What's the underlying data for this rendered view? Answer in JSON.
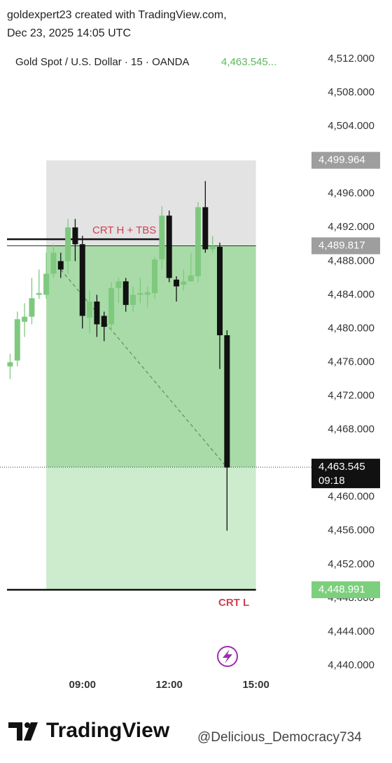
{
  "header": {
    "line1": "goldexpert23 created with TradingView.com,",
    "line2": "Dec 23, 2025 14:05 UTC"
  },
  "chart_data": {
    "type": "candlestick",
    "title": "Gold Spot / U.S. Dollar · 15 · OANDA",
    "last_price_label": "4,463.545...",
    "up_color": "#7fc97f",
    "down_color": "#111111",
    "x": [
      6.5,
      6.75,
      7.0,
      7.25,
      7.5,
      7.75,
      8.0,
      8.25,
      8.5,
      8.75,
      9.0,
      9.25,
      9.5,
      9.75,
      10.0,
      10.25,
      10.5,
      10.75,
      11.0,
      11.25,
      11.5,
      11.75,
      12.0,
      12.25,
      12.5,
      12.75,
      13.0,
      13.25,
      13.5,
      13.75,
      14.0
    ],
    "open": [
      4475.5,
      4476.2,
      4480.8,
      4481.4,
      4484.0,
      4484.0,
      4486.5,
      4488.0,
      4488.0,
      4492.0,
      4490.0,
      4481.3,
      4483.2,
      4481.5,
      4480.5,
      4484.8,
      4485.6,
      4482.8,
      4484.0,
      4484.0,
      4484.2,
      4488.2,
      4493.4,
      4485.8,
      4485.2,
      4485.6,
      4486.2,
      4494.4,
      4489.4,
      4489.7,
      4479.2
    ],
    "high": [
      4477.0,
      4482.0,
      4483.0,
      4486.0,
      4487.0,
      4489.0,
      4490.0,
      4489.0,
      4493.0,
      4493.0,
      4491.0,
      4484.5,
      4484.0,
      4482.0,
      4485.5,
      4486.0,
      4486.0,
      4485.0,
      4486.0,
      4485.0,
      4488.5,
      4494.5,
      4494.0,
      4486.2,
      4487.0,
      4489.0,
      4495.0,
      4497.5,
      4491.0,
      4490.2,
      4479.8
    ],
    "low": [
      4474.0,
      4475.5,
      4479.0,
      4480.5,
      4483.5,
      4483.5,
      4486.0,
      4486.0,
      4486.5,
      4488.0,
      4480.0,
      4479.5,
      4479.0,
      4478.5,
      4479.7,
      4483.0,
      4482.0,
      4482.0,
      4483.0,
      4482.5,
      4483.5,
      4487.0,
      4485.5,
      4483.2,
      4484.5,
      4485.6,
      4485.5,
      4489.0,
      4489.0,
      4475.2,
      4456.0
    ],
    "close": [
      4476.0,
      4481.1,
      4481.4,
      4483.6,
      4484.2,
      4486.5,
      4489.0,
      4487.0,
      4492.0,
      4490.0,
      4481.5,
      4483.2,
      4480.5,
      4480.2,
      4484.8,
      4485.6,
      4482.8,
      4484.0,
      4484.2,
      4484.3,
      4488.2,
      4493.4,
      4486.0,
      4485.0,
      4485.6,
      4486.3,
      4494.4,
      4489.4,
      4489.8,
      4479.2,
      4463.5
    ],
    "xlim": [
      6.15,
      16.8
    ],
    "xticks": [
      {
        "value": 9,
        "label": "09:00"
      },
      {
        "value": 12,
        "label": "12:00"
      },
      {
        "value": 15,
        "label": "15:00"
      }
    ],
    "ylim": [
      4440,
      4512
    ],
    "yticks": [
      {
        "value": 4440,
        "label": "4,440.000"
      },
      {
        "value": 4444,
        "label": "4,444.000"
      },
      {
        "value": 4448,
        "label": "4,448.000"
      },
      {
        "value": 4452,
        "label": "4,452.000"
      },
      {
        "value": 4456,
        "label": "4,456.000"
      },
      {
        "value": 4460,
        "label": "4,460.000"
      },
      {
        "value": 4464,
        "label": "4,464.000"
      },
      {
        "value": 4468,
        "label": "4,468.000"
      },
      {
        "value": 4472,
        "label": "4,472.000"
      },
      {
        "value": 4476,
        "label": "4,476.000"
      },
      {
        "value": 4480,
        "label": "4,480.000"
      },
      {
        "value": 4484,
        "label": "4,484.000"
      },
      {
        "value": 4488,
        "label": "4,488.000"
      },
      {
        "value": 4492,
        "label": "4,492.000"
      },
      {
        "value": 4496,
        "label": "4,496.000"
      },
      {
        "value": 4500,
        "label": "4,500.000"
      },
      {
        "value": 4504,
        "label": "4,504.000"
      },
      {
        "value": 4508,
        "label": "4,508.000"
      },
      {
        "value": 4512,
        "label": "4,512.000"
      }
    ],
    "zone_top": {
      "value": 4499.964,
      "label": "4,499.964"
    },
    "zone_mid": {
      "value": 4489.817,
      "label": "4,489.817"
    },
    "zone_bottom": {
      "value": 4448.991,
      "label": "4,448.991"
    },
    "zone_start": 7.75,
    "zone_end": 15.0,
    "current_price": {
      "value": 4463.545,
      "label": "4,463.545",
      "countdown": "09:18"
    },
    "crt_high_level": 4490.6,
    "annotations": [
      "CRT H + TBS",
      "CRT L"
    ]
  },
  "footer": {
    "brand": "TradingView",
    "watermark": "@Delicious_Democracy734"
  }
}
